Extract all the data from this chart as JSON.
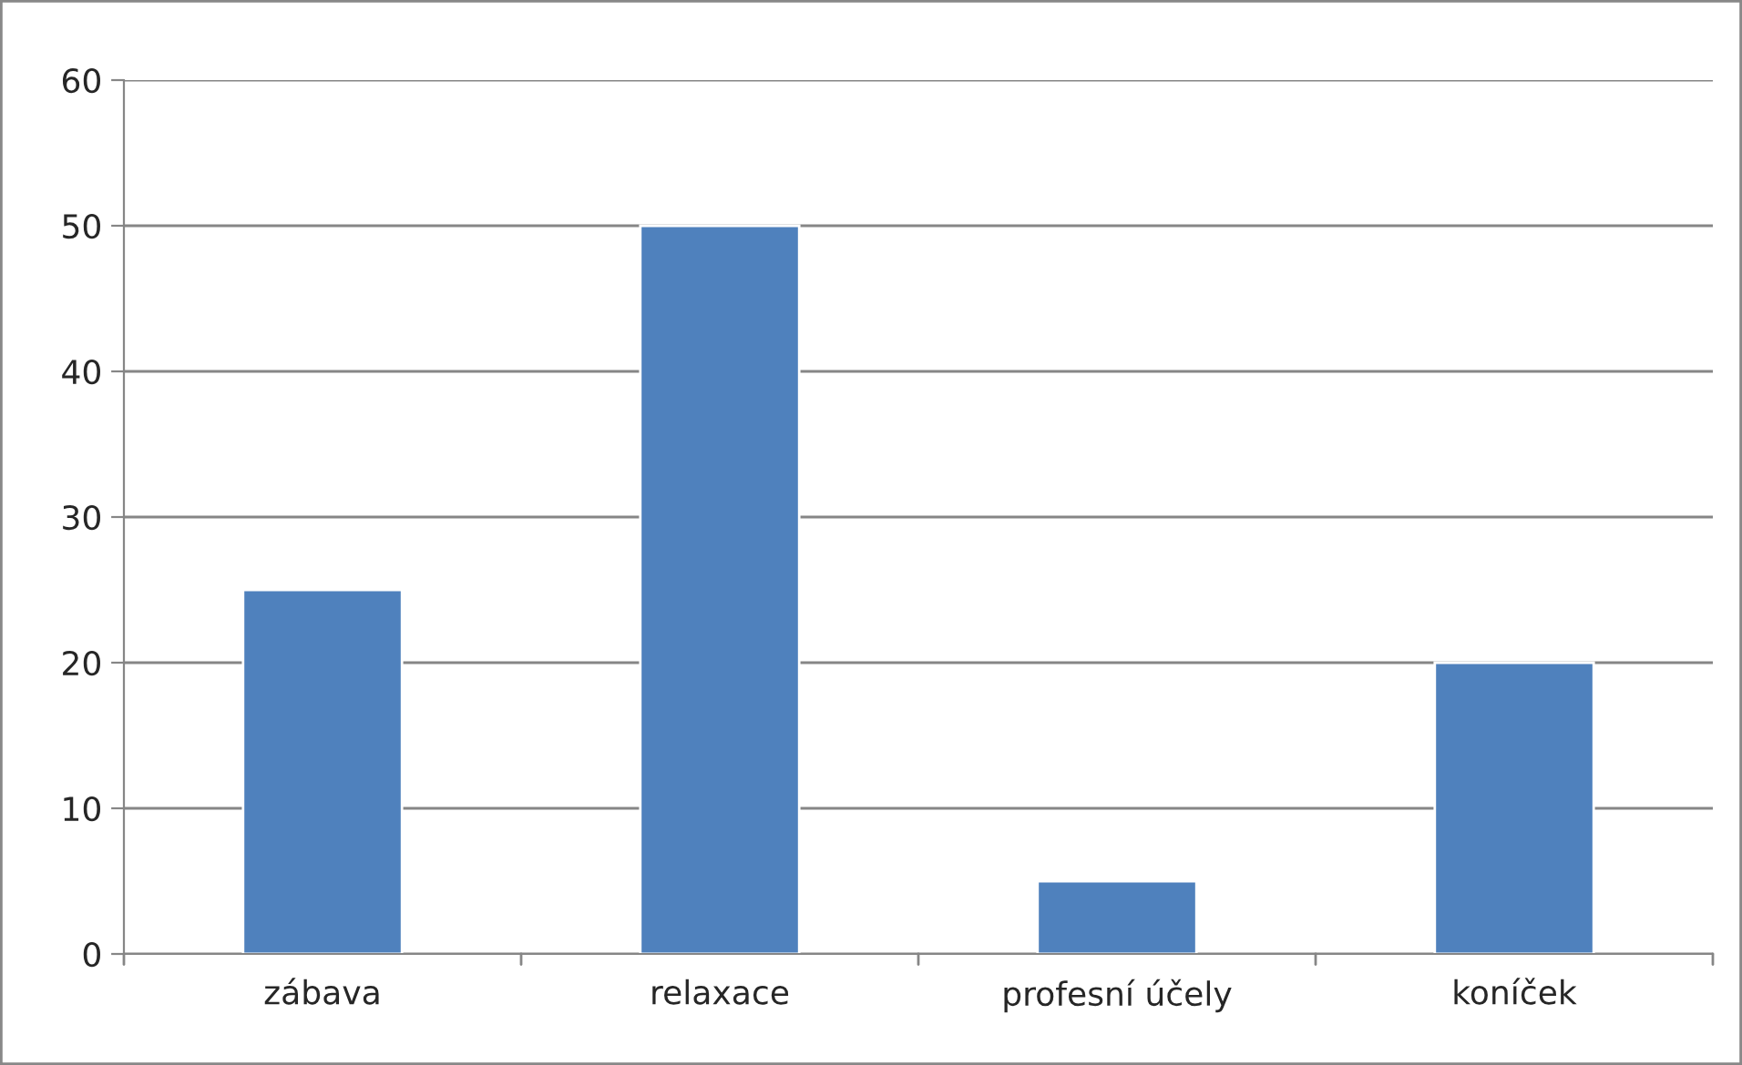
{
  "chart_data": {
    "type": "bar",
    "categories": [
      "zábava",
      "relaxace",
      "profesní účely",
      "koníček"
    ],
    "values": [
      25,
      50,
      5,
      20
    ],
    "color": "#4f81bd",
    "ylim": [
      0,
      60
    ],
    "yticks": [
      0,
      10,
      20,
      30,
      40,
      50,
      60
    ],
    "grid": "y",
    "legend": false
  }
}
